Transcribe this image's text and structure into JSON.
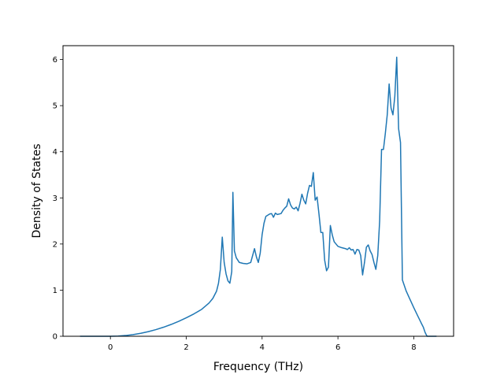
{
  "chart_data": {
    "type": "line",
    "title": "",
    "xlabel": "Frequency (THz)",
    "ylabel": "Density of States",
    "xlim": [
      -1.25,
      9.05
    ],
    "ylim": [
      0,
      6.3
    ],
    "xticks": [
      0,
      2,
      4,
      6,
      8
    ],
    "yticks": [
      0,
      1,
      2,
      3,
      4,
      5,
      6
    ],
    "grid": false,
    "legend": "none",
    "line_color": "#1f77b4",
    "series": [
      {
        "values": [
          [
            -0.8,
            0
          ],
          [
            0.0,
            0
          ],
          [
            0.2,
            0.004
          ],
          [
            0.4,
            0.016
          ],
          [
            0.6,
            0.036
          ],
          [
            0.8,
            0.064
          ],
          [
            1.0,
            0.1
          ],
          [
            1.2,
            0.144
          ],
          [
            1.4,
            0.196
          ],
          [
            1.6,
            0.256
          ],
          [
            1.8,
            0.324
          ],
          [
            2.0,
            0.4
          ],
          [
            2.2,
            0.484
          ],
          [
            2.4,
            0.58
          ],
          [
            2.6,
            0.72
          ],
          [
            2.7,
            0.82
          ],
          [
            2.8,
            0.98
          ],
          [
            2.85,
            1.15
          ],
          [
            2.9,
            1.45
          ],
          [
            2.95,
            2.15
          ],
          [
            3.0,
            1.6
          ],
          [
            3.05,
            1.35
          ],
          [
            3.1,
            1.2
          ],
          [
            3.15,
            1.15
          ],
          [
            3.2,
            1.4
          ],
          [
            3.23,
            3.12
          ],
          [
            3.27,
            1.85
          ],
          [
            3.32,
            1.7
          ],
          [
            3.4,
            1.6
          ],
          [
            3.5,
            1.58
          ],
          [
            3.6,
            1.57
          ],
          [
            3.7,
            1.6
          ],
          [
            3.75,
            1.75
          ],
          [
            3.8,
            1.9
          ],
          [
            3.85,
            1.72
          ],
          [
            3.9,
            1.6
          ],
          [
            3.95,
            1.8
          ],
          [
            4.0,
            2.2
          ],
          [
            4.05,
            2.45
          ],
          [
            4.1,
            2.6
          ],
          [
            4.2,
            2.65
          ],
          [
            4.25,
            2.66
          ],
          [
            4.3,
            2.58
          ],
          [
            4.35,
            2.67
          ],
          [
            4.4,
            2.64
          ],
          [
            4.5,
            2.66
          ],
          [
            4.55,
            2.73
          ],
          [
            4.6,
            2.78
          ],
          [
            4.65,
            2.82
          ],
          [
            4.7,
            2.98
          ],
          [
            4.75,
            2.85
          ],
          [
            4.8,
            2.78
          ],
          [
            4.85,
            2.76
          ],
          [
            4.9,
            2.8
          ],
          [
            4.95,
            2.72
          ],
          [
            5.0,
            2.88
          ],
          [
            5.05,
            3.08
          ],
          [
            5.1,
            2.95
          ],
          [
            5.15,
            2.87
          ],
          [
            5.2,
            3.1
          ],
          [
            5.25,
            3.27
          ],
          [
            5.3,
            3.25
          ],
          [
            5.35,
            3.55
          ],
          [
            5.4,
            2.95
          ],
          [
            5.45,
            3.02
          ],
          [
            5.5,
            2.65
          ],
          [
            5.55,
            2.25
          ],
          [
            5.6,
            2.25
          ],
          [
            5.65,
            1.65
          ],
          [
            5.7,
            1.42
          ],
          [
            5.75,
            1.5
          ],
          [
            5.8,
            2.4
          ],
          [
            5.85,
            2.2
          ],
          [
            5.9,
            2.05
          ],
          [
            6.0,
            1.95
          ],
          [
            6.1,
            1.92
          ],
          [
            6.2,
            1.9
          ],
          [
            6.25,
            1.88
          ],
          [
            6.3,
            1.92
          ],
          [
            6.35,
            1.87
          ],
          [
            6.4,
            1.88
          ],
          [
            6.45,
            1.78
          ],
          [
            6.5,
            1.88
          ],
          [
            6.55,
            1.87
          ],
          [
            6.6,
            1.75
          ],
          [
            6.65,
            1.33
          ],
          [
            6.7,
            1.6
          ],
          [
            6.75,
            1.93
          ],
          [
            6.8,
            1.98
          ],
          [
            6.85,
            1.85
          ],
          [
            6.9,
            1.77
          ],
          [
            6.95,
            1.6
          ],
          [
            7.0,
            1.45
          ],
          [
            7.05,
            1.75
          ],
          [
            7.1,
            2.5
          ],
          [
            7.15,
            4.05
          ],
          [
            7.2,
            4.05
          ],
          [
            7.25,
            4.4
          ],
          [
            7.3,
            4.8
          ],
          [
            7.35,
            5.47
          ],
          [
            7.4,
            4.95
          ],
          [
            7.45,
            4.8
          ],
          [
            7.5,
            5.2
          ],
          [
            7.55,
            6.05
          ],
          [
            7.6,
            4.5
          ],
          [
            7.65,
            4.2
          ],
          [
            7.7,
            1.22
          ],
          [
            7.8,
            0.98
          ],
          [
            7.9,
            0.8
          ],
          [
            8.0,
            0.62
          ],
          [
            8.1,
            0.45
          ],
          [
            8.2,
            0.28
          ],
          [
            8.25,
            0.2
          ],
          [
            8.3,
            0.08
          ],
          [
            8.35,
            0
          ],
          [
            8.6,
            0
          ]
        ]
      }
    ]
  }
}
